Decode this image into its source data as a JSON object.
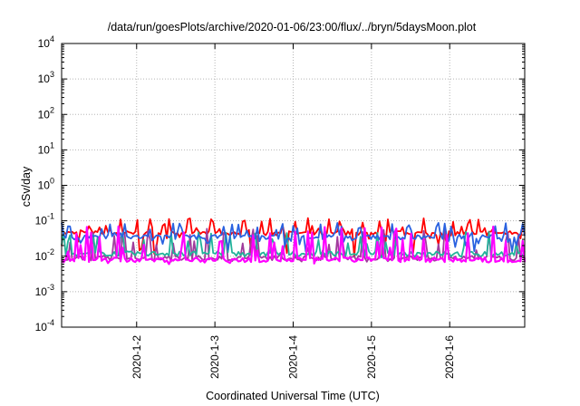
{
  "chart_data": {
    "type": "line",
    "title": "/data/run/goesPlots/archive/2020-01-06/23:00/flux/../bryn/5daysMoon.plot",
    "xlabel": "Coordinated Universal Time (UTC)",
    "ylabel": "cSv/day",
    "yscale": "log",
    "ylim": [
      0.0001,
      10000
    ],
    "xlim": [
      "2020-01-01T01:00",
      "2020-01-06T23:00"
    ],
    "grid": true,
    "legend": "none",
    "y_ticks": [
      {
        "base": "10",
        "exp": "-4",
        "value": 0.0001
      },
      {
        "base": "10",
        "exp": "-3",
        "value": 0.001
      },
      {
        "base": "10",
        "exp": "-2",
        "value": 0.01
      },
      {
        "base": "10",
        "exp": "-1",
        "value": 0.1
      },
      {
        "base": "10",
        "exp": "0",
        "value": 1
      },
      {
        "base": "10",
        "exp": "1",
        "value": 10
      },
      {
        "base": "10",
        "exp": "2",
        "value": 100
      },
      {
        "base": "10",
        "exp": "3",
        "value": 1000
      },
      {
        "base": "10",
        "exp": "4",
        "value": 10000
      }
    ],
    "x_ticks": [
      {
        "label": "2020-1-2",
        "value": "2020-01-02T00:00"
      },
      {
        "label": "2020-1-3",
        "value": "2020-01-03T00:00"
      },
      {
        "label": "2020-1-4",
        "value": "2020-01-04T00:00"
      },
      {
        "label": "2020-1-5",
        "value": "2020-01-05T00:00"
      },
      {
        "label": "2020-1-6",
        "value": "2020-01-06T00:00"
      }
    ],
    "series_colors": [
      "#ff0000",
      "#a03c9c",
      "#22b39a",
      "#00b000",
      "#2a62e0",
      "#ff00ff"
    ],
    "bands": [
      {
        "color": "#ff0000",
        "base": 0.045,
        "spike_max": 0.12,
        "dip_min": 0.009
      },
      {
        "color": "#a03c9c",
        "base": 0.009,
        "spike_max": 0.06,
        "dip_min": 0.007
      },
      {
        "color": "#22b39a",
        "base": 0.012,
        "spike_max": 0.05,
        "dip_min": 0.009
      },
      {
        "color": "#2a62e0",
        "base": 0.035,
        "spike_max": 0.09,
        "dip_min": 0.012
      },
      {
        "color": "#ff00ff",
        "base": 0.008,
        "spike_max": 0.07,
        "dip_min": 0.006
      }
    ]
  }
}
